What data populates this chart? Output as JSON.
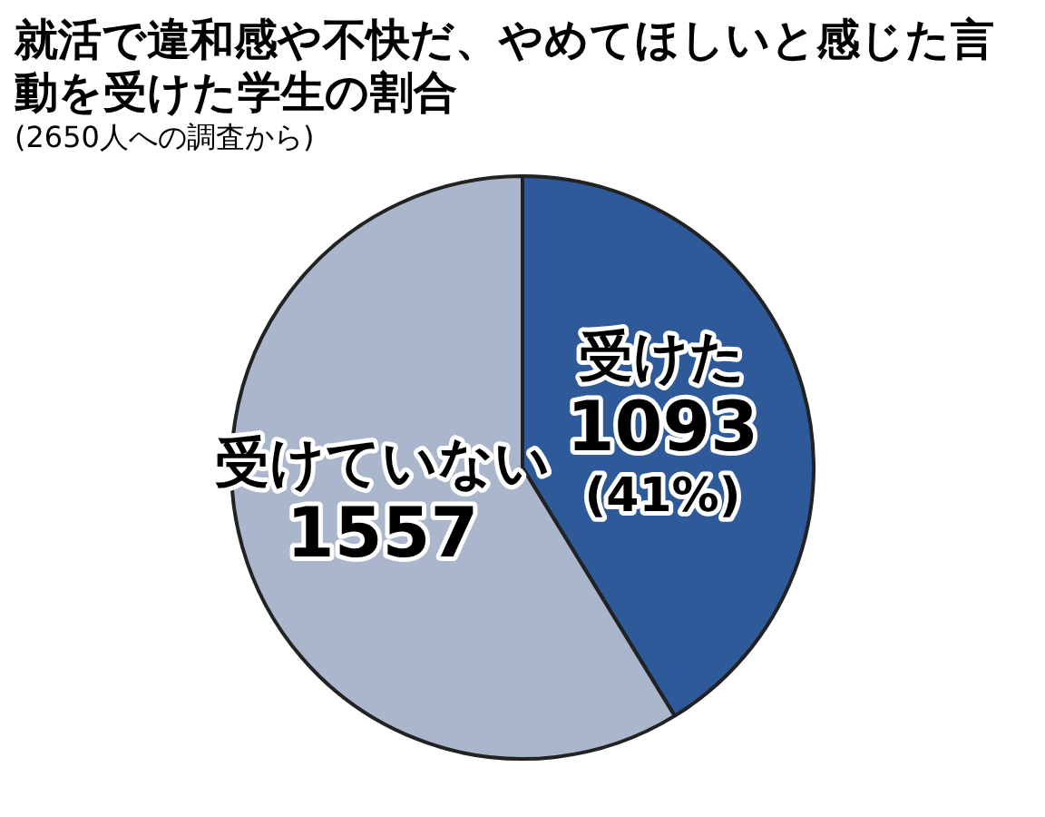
{
  "chart_data": {
    "type": "pie",
    "title": "就活で違和感や不快だ、やめてほしいと感じた言動を受けた学生の割合",
    "subtitle": "(2650人への調査から)",
    "categories": [
      "受けた",
      "受けていない"
    ],
    "values": [
      1093,
      1557
    ],
    "colors": [
      "#2f5a9a",
      "#a9b6cc"
    ],
    "value_labels": [
      "1093\n(41%)",
      "1557"
    ],
    "legend": false
  }
}
